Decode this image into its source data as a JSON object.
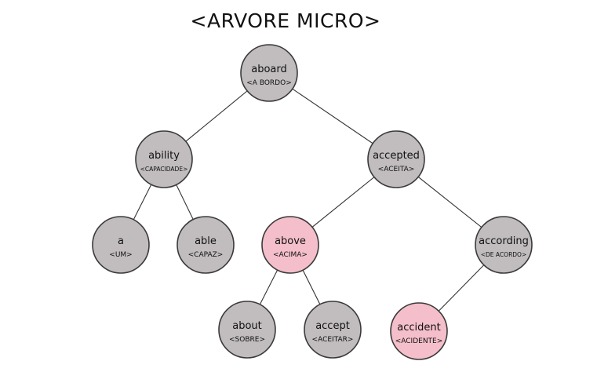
{
  "title": "<ARVORE MICRO>",
  "colors": {
    "node_default": "#c1bdbe",
    "node_highlight": "#f4bfca",
    "edge": "#333333",
    "stroke": "#3a3a3a",
    "highlight_stroke": "#8a3a4a"
  },
  "nodes": [
    {
      "id": "aboard",
      "word": "aboard",
      "translation": "<A BORDO>",
      "highlight": false
    },
    {
      "id": "ability",
      "word": "ability",
      "translation": "<CAPACIDADE>",
      "highlight": false
    },
    {
      "id": "accepted",
      "word": "accepted",
      "translation": "<ACEITA>",
      "highlight": false
    },
    {
      "id": "a",
      "word": "a",
      "translation": "<UM>",
      "highlight": false
    },
    {
      "id": "able",
      "word": "able",
      "translation": "<CAPAZ>",
      "highlight": false
    },
    {
      "id": "above",
      "word": "above",
      "translation": "<ACIMA>",
      "highlight": true
    },
    {
      "id": "according",
      "word": "according",
      "translation": "<DE ACORDO>",
      "highlight": false
    },
    {
      "id": "about",
      "word": "about",
      "translation": "<SOBRE>",
      "highlight": false
    },
    {
      "id": "accept",
      "word": "accept",
      "translation": "<ACEITAR>",
      "highlight": false
    },
    {
      "id": "accident",
      "word": "accident",
      "translation": "<ACIDENTE>",
      "highlight": true
    }
  ],
  "edges": [
    [
      "aboard",
      "ability"
    ],
    [
      "aboard",
      "accepted"
    ],
    [
      "ability",
      "a"
    ],
    [
      "ability",
      "able"
    ],
    [
      "accepted",
      "above"
    ],
    [
      "accepted",
      "according"
    ],
    [
      "above",
      "about"
    ],
    [
      "above",
      "accept"
    ],
    [
      "according",
      "accident"
    ]
  ]
}
